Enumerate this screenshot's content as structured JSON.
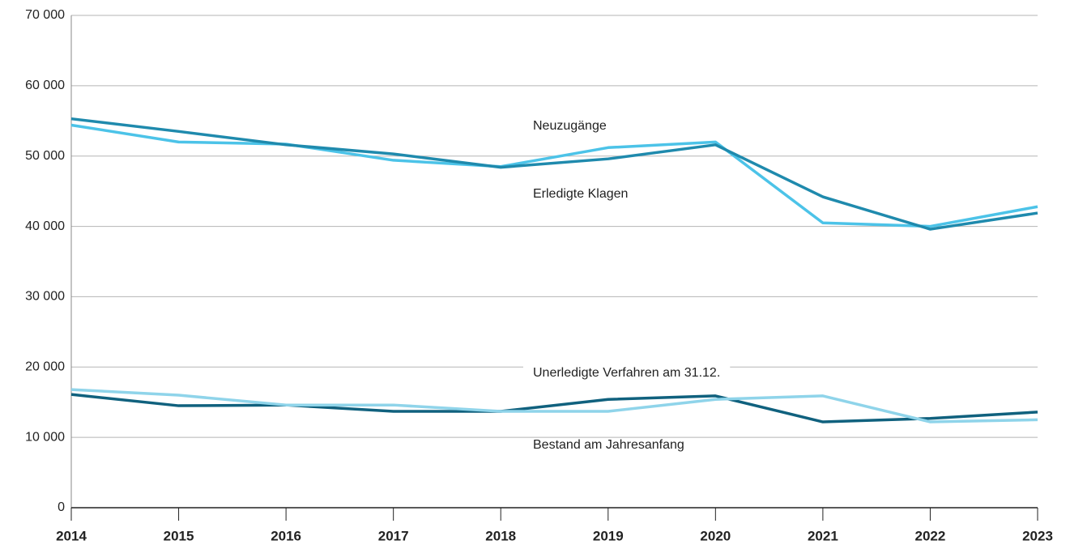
{
  "chart_data": {
    "type": "line",
    "x": [
      2014,
      2015,
      2016,
      2017,
      2018,
      2019,
      2020,
      2021,
      2022,
      2023
    ],
    "series": [
      {
        "name": "Neuzugänge",
        "color": "#4cc3e8",
        "values": [
          54400,
          52000,
          51700,
          49400,
          48500,
          51200,
          52000,
          40500,
          40000,
          42800
        ]
      },
      {
        "name": "Erledigte Klagen",
        "color": "#1f8aad",
        "values": [
          55300,
          53500,
          51600,
          50300,
          48400,
          49600,
          51600,
          44200,
          39600,
          41900
        ]
      },
      {
        "name": "Unerledigte Verfahren am 31.12.",
        "color": "#10617e",
        "values": [
          16100,
          14500,
          14600,
          13700,
          13700,
          15400,
          15900,
          12200,
          12700,
          13600
        ]
      },
      {
        "name": "Bestand am Jahresanfang",
        "color": "#8fd4ea",
        "values": [
          16800,
          16000,
          14600,
          14600,
          13700,
          13700,
          15400,
          15900,
          12200,
          12500
        ]
      }
    ],
    "xlim": [
      2014,
      2023
    ],
    "xticks": [
      2014,
      2015,
      2016,
      2017,
      2018,
      2019,
      2020,
      2021,
      2022,
      2023
    ],
    "ylim": [
      0,
      70000
    ],
    "yticks": [
      0,
      {
        "value": 10000,
        "label": "10 000"
      },
      {
        "value": 20000,
        "label": "20 000"
      },
      {
        "value": 30000,
        "label": "30 000"
      },
      {
        "value": 40000,
        "label": "40 000"
      },
      {
        "value": 50000,
        "label": "50 000"
      },
      {
        "value": 60000,
        "label": "60 000"
      },
      {
        "value": 70000,
        "label": "70 000"
      }
    ],
    "grid": true
  }
}
